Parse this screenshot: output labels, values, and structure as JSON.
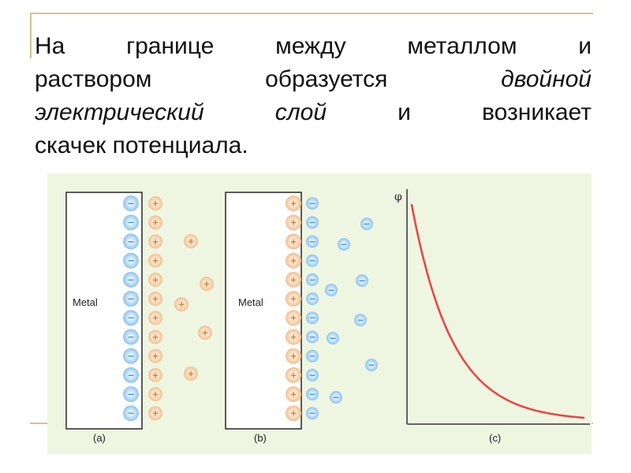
{
  "text": {
    "line1": "На границе между металлом и",
    "line2_a": "раствором образуется ",
    "line2_b": "двойной",
    "line3_a": "электрический слой",
    "line3_b": " и возникает",
    "line4": "скачек потенциала."
  },
  "figure": {
    "plate_label": "Metal",
    "panel_labels": [
      "(a)",
      "(b)",
      "(c)"
    ],
    "axis_label": "φ",
    "plus_symbol": "+",
    "minus_symbol": "−",
    "colors": {
      "background": "#eef6e1",
      "negative_ion": "#2a9ae2",
      "positive_ion": "#e08020",
      "curve": "#e8474a"
    }
  }
}
